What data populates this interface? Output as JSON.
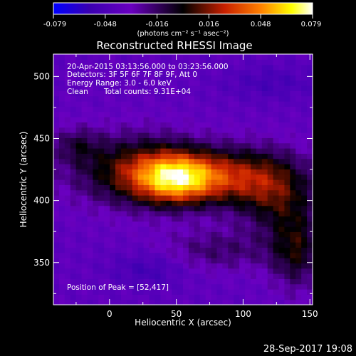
{
  "chart_data": {
    "type": "heatmap",
    "title": "Reconstructed RHESSI Image",
    "xlabel": "Heliocentric X (arcsec)",
    "ylabel": "Heliocentric Y (arcsec)",
    "xlim": [
      -42,
      152
    ],
    "ylim": [
      316,
      518
    ],
    "x_ticks": [
      0,
      50,
      100,
      150
    ],
    "y_ticks": [
      350,
      400,
      450,
      500
    ],
    "colorbar": {
      "ticks": [
        "-0.079",
        "-0.048",
        "-0.016",
        "0.016",
        "0.048",
        "0.079"
      ],
      "vmin": -0.079,
      "vmax": 0.079,
      "units_text": "(photons cm⁻² s⁻¹ asec⁻²)",
      "colors": [
        "#0000ff",
        "#3a00b0",
        "#6a00c0",
        "#000000",
        "#c82000",
        "#ff8000",
        "#ffff00",
        "#ffffff"
      ]
    },
    "annotations": [
      "20-Apr-2015 03:13:56.000 to 03:23:56.000",
      "Detectors: 3F 5F 6F 7F 8F 9F, Att 0",
      "Energy Range: 3.0 - 6.0 keV",
      "Clean",
      "Total counts: 9.31E+04"
    ],
    "peak_label": "Position of Peak = [52,417]",
    "peak": {
      "x": 52,
      "y": 417
    },
    "timestamp": "28-Sep-2017 19:08",
    "components": [
      {
        "x": 50,
        "y": 418,
        "sx": 22,
        "sy": 14,
        "amp": 0.079
      },
      {
        "x": 20,
        "y": 425,
        "sx": 35,
        "sy": 20,
        "amp": 0.045
      },
      {
        "x": 95,
        "y": 420,
        "sx": 28,
        "sy": 16,
        "amp": 0.042
      },
      {
        "x": 125,
        "y": 405,
        "sx": 22,
        "sy": 22,
        "amp": 0.035
      },
      {
        "x": 140,
        "y": 360,
        "sx": 14,
        "sy": 22,
        "amp": 0.035
      },
      {
        "x": 80,
        "y": 360,
        "sx": 30,
        "sy": 12,
        "amp": 0.02
      },
      {
        "x": -25,
        "y": 445,
        "sx": 12,
        "sy": 10,
        "amp": 0.02
      },
      {
        "x": 30,
        "y": 345,
        "sx": 20,
        "sy": 10,
        "amp": -0.015
      },
      {
        "x": 120,
        "y": 495,
        "sx": 25,
        "sy": 10,
        "amp": -0.012
      }
    ]
  }
}
